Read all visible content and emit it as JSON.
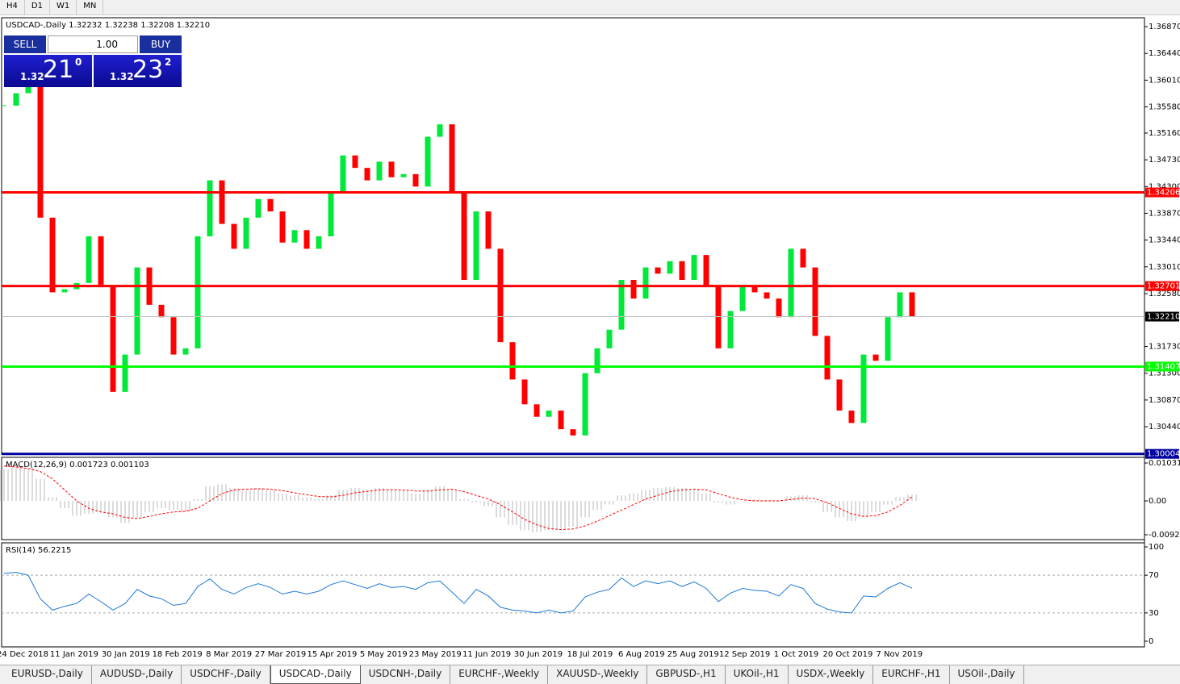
{
  "timeframe_tabs": [
    "H4",
    "D1",
    "W1",
    "MN"
  ],
  "trade_panel": {
    "sell": "SELL",
    "lot": "1.00",
    "buy": "BUY",
    "sell_big": "1.32",
    "sell_pips": "21",
    "sell_sup": "0",
    "buy_big": "1.32",
    "buy_pips": "23",
    "buy_sup": "2"
  },
  "chart_data": [
    {
      "type": "candlestick",
      "title": "USDCAD-,Daily  1.32232 1.32238 1.32208 1.32210",
      "up_color": "#00e83a",
      "down_color": "#ff0000",
      "ylim": [
        1.3,
        1.37013
      ],
      "yticks": [
        {
          "value": 1.3687,
          "label": "1.36870"
        },
        {
          "value": 1.3644,
          "label": "1.36440"
        },
        {
          "value": 1.3601,
          "label": "1.36010"
        },
        {
          "value": 1.3558,
          "label": "1.35580"
        },
        {
          "value": 1.3516,
          "label": "1.35160"
        },
        {
          "value": 1.3473,
          "label": "1.34730"
        },
        {
          "value": 1.343,
          "label": "1.34300"
        },
        {
          "value": 1.3387,
          "label": "1.33870"
        },
        {
          "value": 1.3344,
          "label": "1.33440"
        },
        {
          "value": 1.3301,
          "label": "1.33010"
        },
        {
          "value": 1.3258,
          "label": "1.32580"
        },
        {
          "value": 1.3173,
          "label": "1.31730"
        },
        {
          "value": 1.313,
          "label": "1.31300"
        },
        {
          "value": 1.3087,
          "label": "1.30870"
        },
        {
          "value": 1.3044,
          "label": "1.30440"
        }
      ],
      "x_labels": [
        "24 Dec 2018",
        "11 Jan 2019",
        "30 Jan 2019",
        "18 Feb 2019",
        "8 Mar 2019",
        "27 Mar 2019",
        "15 Apr 2019",
        "5 May 2019",
        "23 May 2019",
        "11 Jun 2019",
        "30 Jun 2019",
        "18 Jul 2019",
        "6 Aug 2019",
        "25 Aug 2019",
        "12 Sep 2019",
        "1 Oct 2019",
        "20 Oct 2019",
        "7 Nov 2019"
      ],
      "values": [
        1.356,
        1.358,
        1.359,
        1.338,
        1.326,
        1.3265,
        1.3275,
        1.335,
        1.327,
        1.31,
        1.316,
        1.33,
        1.324,
        1.322,
        1.316,
        1.317,
        1.335,
        1.344,
        1.337,
        1.333,
        1.338,
        1.341,
        1.339,
        1.334,
        1.336,
        1.333,
        1.335,
        1.342,
        1.348,
        1.346,
        1.344,
        1.347,
        1.3445,
        1.345,
        1.343,
        1.351,
        1.353,
        1.342,
        1.328,
        1.339,
        1.333,
        1.318,
        1.312,
        1.308,
        1.306,
        1.307,
        1.304,
        1.303,
        1.313,
        1.317,
        1.32,
        1.328,
        1.325,
        1.33,
        1.329,
        1.331,
        1.328,
        1.332,
        1.327,
        1.317,
        1.323,
        1.327,
        1.326,
        1.325,
        1.322,
        1.333,
        1.33,
        1.319,
        1.312,
        1.307,
        1.305,
        1.316,
        1.315,
        1.322,
        1.326,
        1.3221
      ],
      "price_lines": [
        {
          "value": 1.34206,
          "color": "#ff0000"
        },
        {
          "value": 1.32701,
          "color": "#ff0000"
        },
        {
          "value": 1.31407,
          "color": "#00ff00"
        },
        {
          "value": 1.30004,
          "color": "#0000a0"
        }
      ],
      "current_price": {
        "value": 1.3221,
        "label": "1.32210"
      }
    },
    {
      "type": "macd",
      "title": "MACD(12,26,9) 0.001723 0.001103",
      "ylim": [
        -0.010517,
        0.011845
      ],
      "yticks": [
        0.010311,
        {
          "value": 0,
          "label": "0.00"
        },
        -0.009203
      ],
      "histogram": {
        "color": "#b8b8b8",
        "values": [
          0.0085,
          0.009,
          0.0088,
          0.006,
          0.001,
          -0.002,
          -0.004,
          -0.0035,
          -0.003,
          -0.0045,
          -0.006,
          -0.0045,
          -0.003,
          -0.002,
          -0.0025,
          -0.003,
          0.0005,
          0.004,
          0.0045,
          0.0035,
          0.003,
          0.0035,
          0.003,
          0.002,
          0.0015,
          0.001,
          0.0005,
          0.0015,
          0.003,
          0.0035,
          0.003,
          0.0035,
          0.003,
          0.0028,
          0.002,
          0.003,
          0.004,
          0.003,
          0.0005,
          -0.0005,
          -0.0015,
          -0.0045,
          -0.0065,
          -0.008,
          -0.0085,
          -0.008,
          -0.0075,
          -0.007,
          -0.0045,
          -0.0025,
          -0.001,
          0.0015,
          0.002,
          0.003,
          0.0035,
          0.0038,
          0.0035,
          0.003,
          0.002,
          -0.0005,
          -0.001,
          0,
          0.0005,
          0.0003,
          0,
          0.0012,
          0.0015,
          -0.0005,
          -0.003,
          -0.0045,
          -0.0055,
          -0.0045,
          -0.003,
          -0.001,
          0.001,
          0.0017
        ]
      },
      "signal": {
        "color": "#ff0000",
        "values": [
          0.0095,
          0.0092,
          0.0088,
          0.008,
          0.006,
          0.003,
          0,
          -0.002,
          -0.003,
          -0.0035,
          -0.0045,
          -0.0048,
          -0.0042,
          -0.0035,
          -0.003,
          -0.0028,
          -0.002,
          0,
          0.002,
          0.003,
          0.0032,
          0.0033,
          0.0032,
          0.0028,
          0.0022,
          0.0017,
          0.0012,
          0.0011,
          0.0015,
          0.0022,
          0.0026,
          0.003,
          0.0031,
          0.003,
          0.0027,
          0.0027,
          0.003,
          0.0032,
          0.0025,
          0.0015,
          0.0005,
          -0.001,
          -0.003,
          -0.005,
          -0.0065,
          -0.0075,
          -0.0078,
          -0.0076,
          -0.0068,
          -0.0055,
          -0.004,
          -0.0025,
          -0.001,
          0.0005,
          0.0015,
          0.0025,
          0.003,
          0.0032,
          0.003,
          0.002,
          0.001,
          0.0003,
          0,
          0,
          0,
          0.0004,
          0.0008,
          0.0006,
          -0.0005,
          -0.002,
          -0.0035,
          -0.0042,
          -0.004,
          -0.003,
          -0.0012,
          0.0011
        ]
      }
    },
    {
      "type": "line",
      "title": "RSI(14) 56.2215",
      "color": "#1e78d8",
      "ylim": [
        -6,
        104.3
      ],
      "yticks": [
        100,
        70,
        30,
        0
      ],
      "values": [
        72,
        73,
        70,
        45,
        33,
        37,
        40,
        50,
        42,
        33,
        40,
        55,
        48,
        45,
        38,
        40,
        58,
        66,
        55,
        50,
        57,
        61,
        57,
        50,
        53,
        50,
        53,
        60,
        64,
        60,
        56,
        61,
        57,
        58,
        55,
        62,
        64,
        52,
        40,
        55,
        48,
        36,
        33,
        32,
        30,
        33,
        30,
        32,
        47,
        52,
        55,
        67,
        58,
        64,
        61,
        64,
        58,
        63,
        56,
        42,
        51,
        56,
        54,
        53,
        48,
        60,
        56,
        40,
        34,
        31,
        30,
        48,
        47,
        56,
        62,
        56.2215
      ]
    }
  ],
  "symbol_tabs": [
    "EURUSD-,Daily",
    "AUDUSD-,Daily",
    "USDCHF-,Daily",
    "USDCAD-,Daily",
    "USDCNH-,Daily",
    "EURCHF-,Weekly",
    "XAUUSD-,Weekly",
    "GBPUSD-,H1",
    "UKOil-,H1",
    "USDX-,Weekly",
    "EURCHF-,H1",
    "USOil-,Daily"
  ],
  "active_tab": 3
}
